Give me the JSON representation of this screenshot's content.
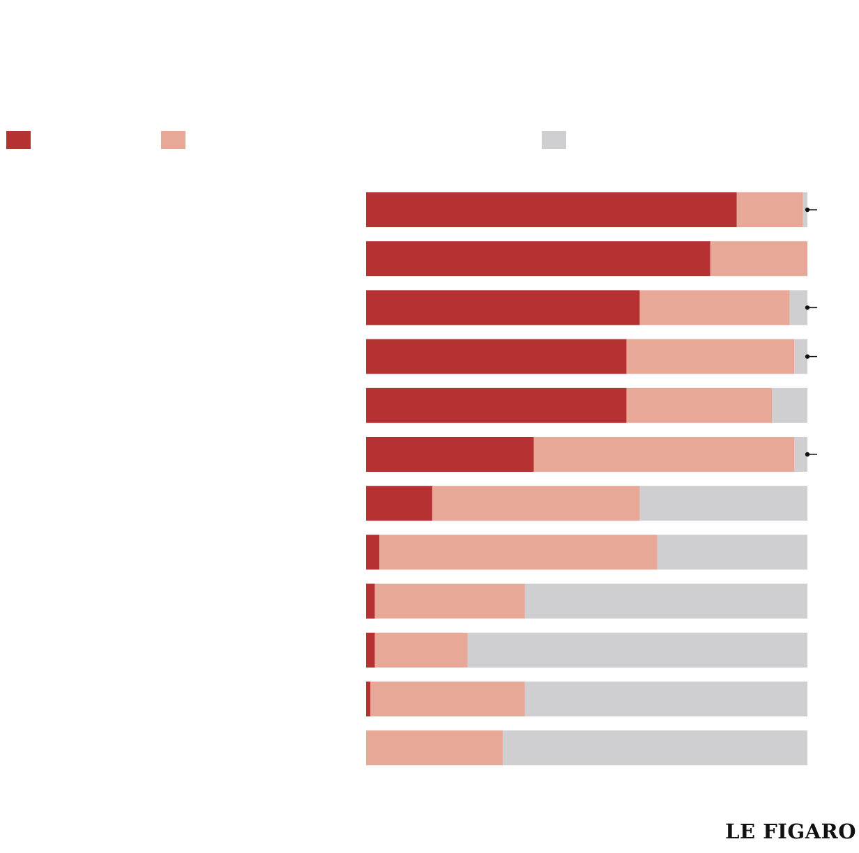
{
  "brand": {
    "logo_text": "LE FIGARO"
  },
  "colors": {
    "series_1": "#b53132",
    "series_2": "#e8a898",
    "series_3": "#cfcfd1",
    "marker": "#111111"
  },
  "chart_data": {
    "type": "bar",
    "orientation": "horizontal",
    "stacked": true,
    "normalized_to": 100,
    "title": "",
    "xlabel": "",
    "ylabel": "",
    "xlim": [
      0,
      100
    ],
    "grid": false,
    "legend": {
      "placement": "top-left",
      "entries": [
        "",
        "",
        ""
      ]
    },
    "categories": [
      "",
      "",
      "",
      "",
      "",
      "",
      "",
      "",
      "",
      "",
      "",
      ""
    ],
    "series": [
      {
        "color": "#b53132",
        "values": [
          84,
          78,
          62,
          59,
          59,
          38,
          15,
          3,
          2,
          2,
          1,
          0
        ]
      },
      {
        "color": "#e8a898",
        "values": [
          15,
          22,
          34,
          38,
          33,
          59,
          47,
          63,
          34,
          21,
          35,
          31
        ]
      },
      {
        "color": "#cfcfd1",
        "values": [
          1,
          0,
          4,
          3,
          8,
          3,
          38,
          34,
          64,
          77,
          64,
          69
        ]
      }
    ],
    "markers": [
      0,
      2,
      3,
      5
    ]
  }
}
